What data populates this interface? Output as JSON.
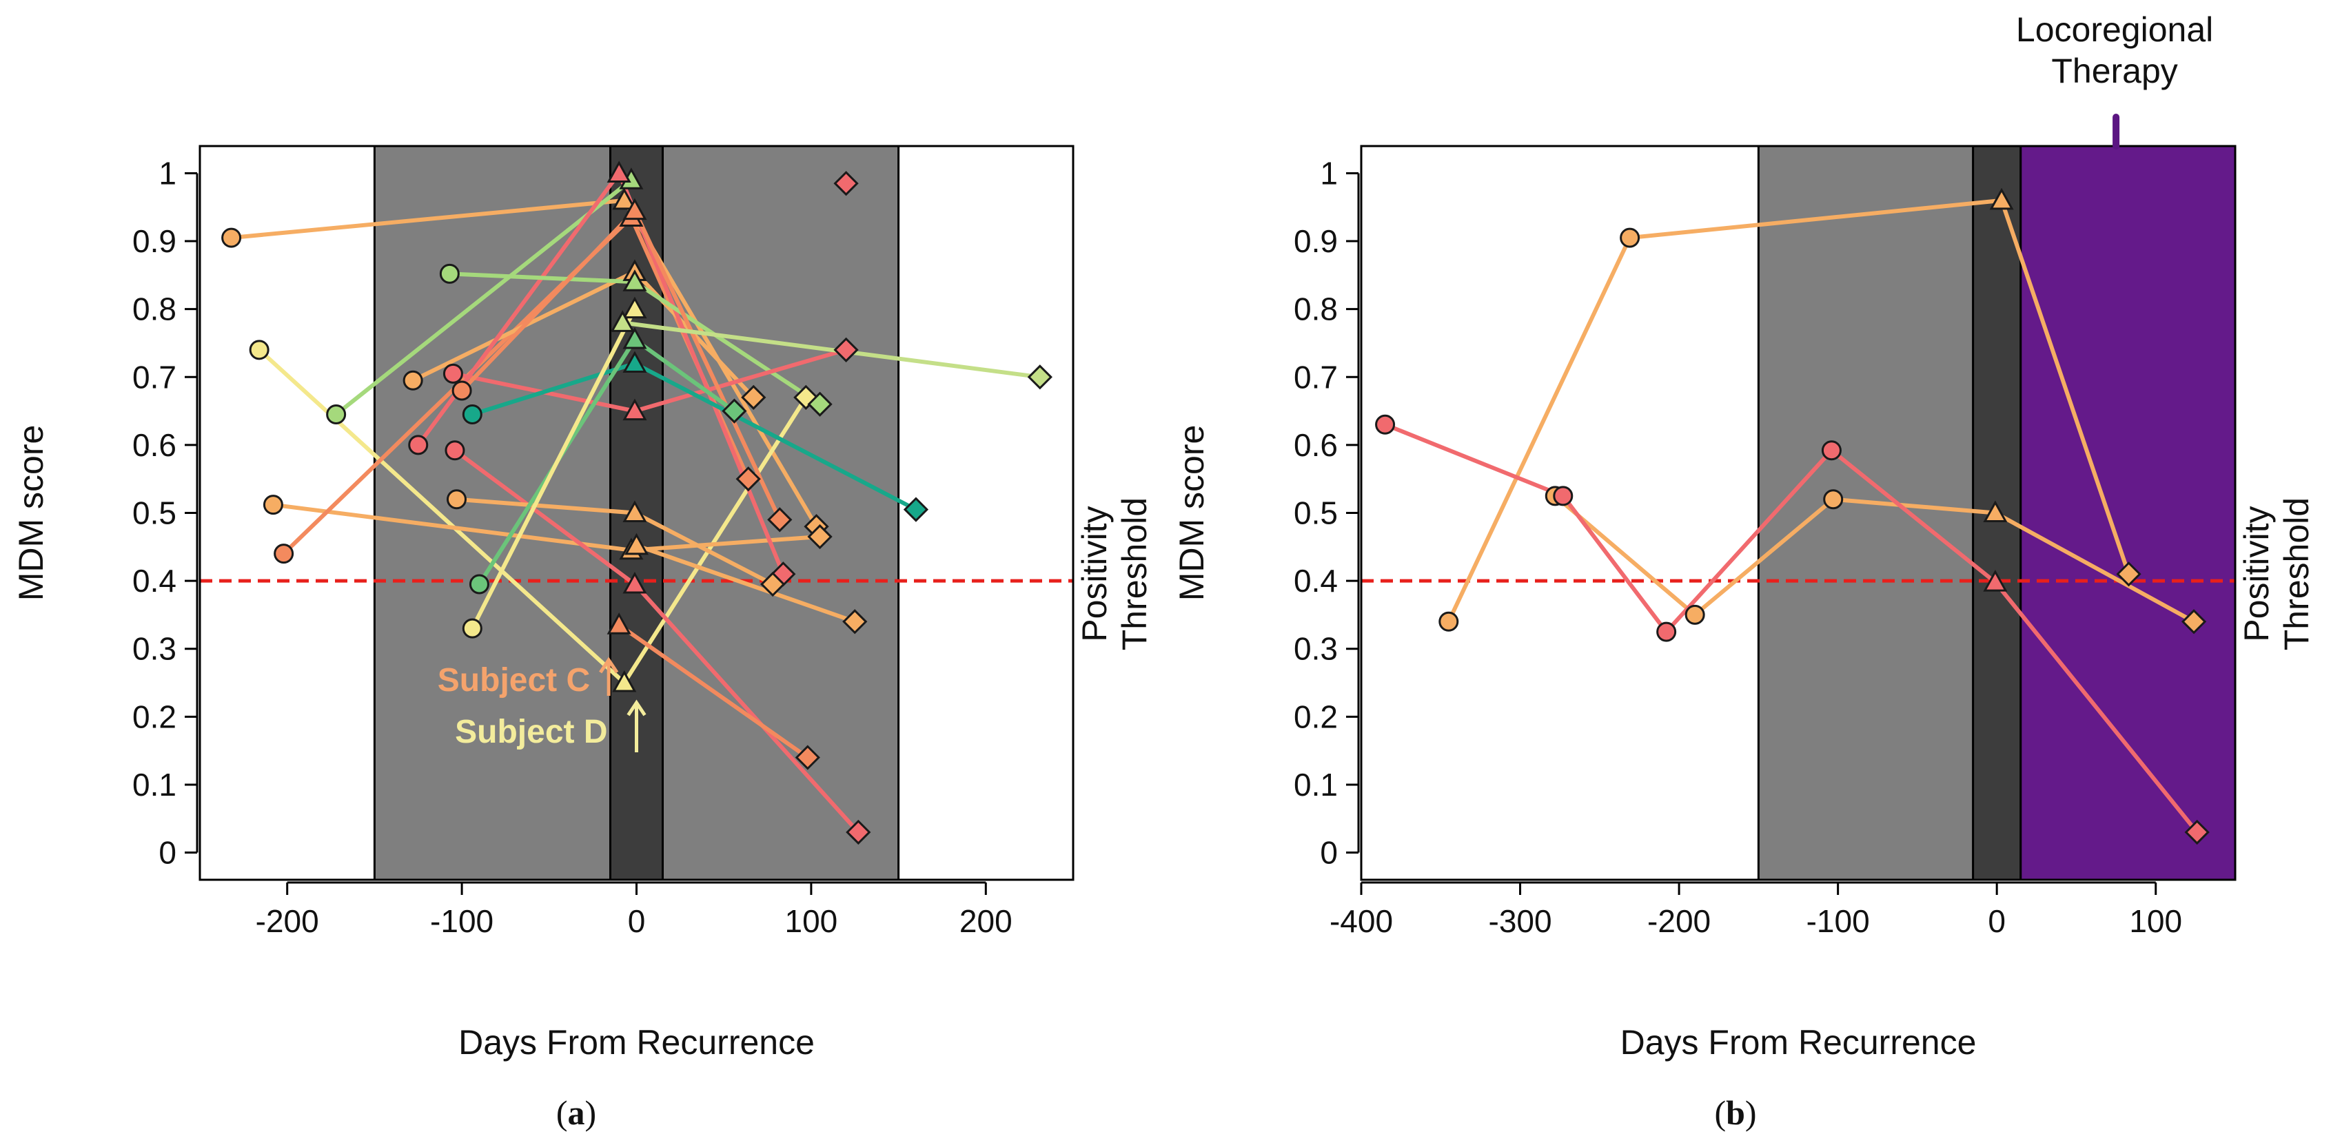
{
  "colors": {
    "band_outer": "#7f7f7f",
    "band_inner": "#3d3d3d",
    "therapy": "#641a8a",
    "threshold": "#e8201c",
    "therapy_marker": "#5b1682"
  },
  "chart_data": [
    {
      "type": "scatter",
      "panel": "a",
      "caption_letter": "a",
      "xlabel": "Days From Recurrence",
      "ylabel": "MDM score",
      "threshold_label": [
        "Positivity",
        "Threshold"
      ],
      "threshold": 0.4,
      "xlim": [
        -250,
        250
      ],
      "ylim": [
        -0.04,
        1.04
      ],
      "x_ticks": [
        -200,
        -100,
        0,
        100,
        200
      ],
      "y_ticks": [
        0,
        0.1,
        0.2,
        0.3,
        0.4,
        0.5,
        0.6,
        0.7,
        0.8,
        0.9,
        1
      ],
      "regions": [
        {
          "from": -150,
          "to": 150,
          "color": "#7f7f7f"
        },
        {
          "from": -15,
          "to": 15,
          "color": "#3d3d3d"
        }
      ],
      "annotations": [
        {
          "text": "Subject C",
          "color": "#f5a36c",
          "x": -10,
          "y": 0.27
        },
        {
          "text": "Subject D",
          "color": "#f3ec9c",
          "x": 0,
          "y": 0.18
        }
      ],
      "series": [
        {
          "color": "#f6ad63",
          "points": [
            {
              "x": -232,
              "y": 0.905,
              "m": "c"
            },
            {
              "x": -7,
              "y": 0.96,
              "m": "t"
            },
            {
              "x": 103,
              "y": 0.48,
              "m": "d"
            }
          ]
        },
        {
          "color": "#f4e88c",
          "points": [
            {
              "x": -216,
              "y": 0.74,
              "m": "c"
            },
            {
              "x": -7,
              "y": 0.25,
              "m": "t"
            },
            {
              "x": 97,
              "y": 0.67,
              "m": "d"
            }
          ]
        },
        {
          "color": "#f6ad63",
          "points": [
            {
              "x": -208,
              "y": 0.512,
              "m": "c"
            },
            {
              "x": -3,
              "y": 0.445,
              "m": "t"
            },
            {
              "x": 105,
              "y": 0.465,
              "m": "d"
            }
          ]
        },
        {
          "color": "#f38a5e",
          "points": [
            {
              "x": -202,
              "y": 0.44,
              "m": "c"
            },
            {
              "x": -3,
              "y": 0.935,
              "m": "t"
            },
            {
              "x": 64,
              "y": 0.55,
              "m": "d"
            }
          ]
        },
        {
          "color": "#a5d97c",
          "points": [
            {
              "x": -172,
              "y": 0.645,
              "m": "c"
            },
            {
              "x": -3,
              "y": 0.99,
              "m": "t"
            }
          ]
        },
        {
          "color": "#f6ad63",
          "points": [
            {
              "x": -128,
              "y": 0.695,
              "m": "c"
            },
            {
              "x": -1,
              "y": 0.855,
              "m": "t"
            },
            {
              "x": 67,
              "y": 0.67,
              "m": "d"
            }
          ]
        },
        {
          "color": "#f16a6e",
          "points": [
            {
              "x": -125,
              "y": 0.6,
              "m": "c"
            },
            {
              "x": -10,
              "y": 1.0,
              "m": "t"
            },
            {
              "x": 84,
              "y": 0.41,
              "m": "d"
            }
          ]
        },
        {
          "color": "#a5d97c",
          "points": [
            {
              "x": -107,
              "y": 0.852,
              "m": "c"
            },
            {
              "x": -1,
              "y": 0.84,
              "m": "t"
            },
            {
              "x": 105,
              "y": 0.66,
              "m": "d"
            }
          ]
        },
        {
          "color": "#f16a6e",
          "points": [
            {
              "x": -105,
              "y": 0.705,
              "m": "c"
            },
            {
              "x": -1,
              "y": 0.65,
              "m": "t"
            },
            {
              "x": 120,
              "y": 0.74,
              "m": "d"
            }
          ]
        },
        {
          "color": "#f16a6e",
          "points": [
            {
              "x": -104,
              "y": 0.592,
              "m": "c"
            },
            {
              "x": -1,
              "y": 0.395,
              "m": "t"
            },
            {
              "x": 127,
              "y": 0.03,
              "m": "d"
            }
          ]
        },
        {
          "color": "#f6ad63",
          "points": [
            {
              "x": -103,
              "y": 0.52,
              "m": "c"
            },
            {
              "x": -1,
              "y": 0.5,
              "m": "t"
            },
            {
              "x": 78,
              "y": 0.395,
              "m": "d"
            }
          ]
        },
        {
          "color": "#f38a5e",
          "points": [
            {
              "x": -100,
              "y": 0.68,
              "m": "c"
            },
            {
              "x": -1,
              "y": 0.945,
              "m": "t"
            },
            {
              "x": 82,
              "y": 0.49,
              "m": "d"
            }
          ]
        },
        {
          "color": "#17a88a",
          "points": [
            {
              "x": -94,
              "y": 0.645,
              "m": "c"
            },
            {
              "x": -1,
              "y": 0.72,
              "m": "t"
            },
            {
              "x": 160,
              "y": 0.505,
              "m": "d"
            }
          ]
        },
        {
          "color": "#6bc47a",
          "points": [
            {
              "x": -90,
              "y": 0.395,
              "m": "c"
            },
            {
              "x": -1,
              "y": 0.755,
              "m": "t"
            },
            {
              "x": 56,
              "y": 0.65,
              "m": "d"
            }
          ]
        },
        {
          "color": "#f4e88c",
          "points": [
            {
              "x": -94,
              "y": 0.33,
              "m": "c"
            },
            {
              "x": -1,
              "y": 0.8,
              "m": "t"
            }
          ]
        },
        {
          "color": "#c4df88",
          "points": [
            {
              "x": -8,
              "y": 0.78,
              "m": "t"
            },
            {
              "x": 231,
              "y": 0.7,
              "m": "d"
            }
          ]
        },
        {
          "color": "#f16a6e",
          "points": [
            {
              "x": 120,
              "y": 0.985,
              "m": "d"
            }
          ]
        },
        {
          "color": "#f38a5e",
          "points": [
            {
              "x": -10,
              "y": 0.335,
              "m": "t"
            },
            {
              "x": 98,
              "y": 0.14,
              "m": "d"
            }
          ]
        },
        {
          "color": "#f6ad63",
          "points": [
            {
              "x": 0,
              "y": 0.452,
              "m": "t"
            },
            {
              "x": 125,
              "y": 0.34,
              "m": "d"
            }
          ]
        }
      ]
    },
    {
      "type": "scatter",
      "panel": "b",
      "caption_letter": "b",
      "xlabel": "Days From Recurrence",
      "ylabel": "MDM score",
      "threshold_label": [
        "Positivity",
        "Threshold"
      ],
      "threshold": 0.4,
      "xlim": [
        -400,
        150
      ],
      "ylim": [
        -0.04,
        1.04
      ],
      "x_ticks": [
        -400,
        -300,
        -200,
        -100,
        0,
        100
      ],
      "y_ticks": [
        0,
        0.1,
        0.2,
        0.3,
        0.4,
        0.5,
        0.6,
        0.7,
        0.8,
        0.9,
        1
      ],
      "regions": [
        {
          "from": -150,
          "to": 15,
          "color": "#7f7f7f"
        },
        {
          "from": -15,
          "to": 15,
          "color": "#3d3d3d"
        },
        {
          "from": 15,
          "to": 150,
          "color": "#641a8a"
        }
      ],
      "therapy_label": [
        "Locoregional",
        "Therapy"
      ],
      "therapy_x": 75,
      "series": [
        {
          "color": "#f6ad63",
          "points": [
            {
              "x": -345,
              "y": 0.34,
              "m": "c"
            },
            {
              "x": -231,
              "y": 0.905,
              "m": "c"
            },
            {
              "x": 3,
              "y": 0.96,
              "m": "t"
            },
            {
              "x": 83,
              "y": 0.41,
              "m": "d"
            }
          ]
        },
        {
          "color": "#f6ad63",
          "points": [
            {
              "x": -278,
              "y": 0.525,
              "m": "c"
            },
            {
              "x": -190,
              "y": 0.35,
              "m": "c"
            },
            {
              "x": -103,
              "y": 0.52,
              "m": "c"
            },
            {
              "x": -1,
              "y": 0.5,
              "m": "t"
            },
            {
              "x": 124,
              "y": 0.34,
              "m": "d"
            }
          ]
        },
        {
          "color": "#f16a6e",
          "points": [
            {
              "x": -385,
              "y": 0.63,
              "m": "c"
            },
            {
              "x": -273,
              "y": 0.525,
              "m": "c"
            },
            {
              "x": -208,
              "y": 0.325,
              "m": "c"
            },
            {
              "x": -104,
              "y": 0.592,
              "m": "c"
            },
            {
              "x": -1,
              "y": 0.398,
              "m": "t"
            },
            {
              "x": 126,
              "y": 0.03,
              "m": "d"
            }
          ]
        }
      ]
    }
  ]
}
